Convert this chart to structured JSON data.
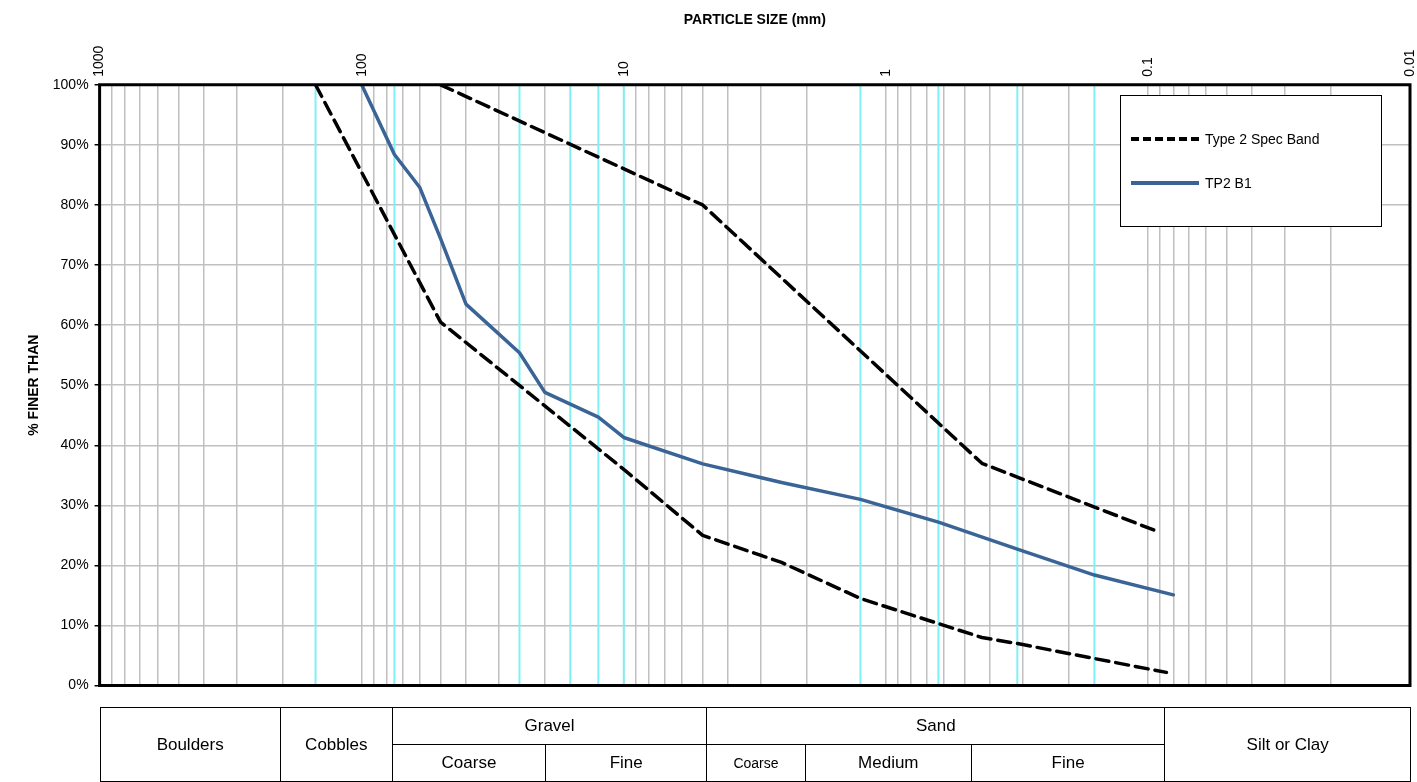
{
  "chart_data": {
    "type": "line",
    "xlabel": "PARTICLE SIZE (mm)",
    "ylabel": "% FINER THAN",
    "log": "x",
    "xlim": [
      1000,
      0.01
    ],
    "ylim": [
      0,
      100
    ],
    "xticks": [
      1000,
      {
        "value": 900,
        "label": null
      },
      {
        "value": 800,
        "label": null
      },
      {
        "value": 700,
        "label": null
      },
      {
        "value": 600,
        "label": null
      },
      {
        "value": 500,
        "label": null
      },
      {
        "value": 400,
        "label": null
      },
      {
        "value": 300,
        "label": null
      },
      {
        "value": 200,
        "label": null
      },
      100,
      {
        "value": 90,
        "label": null
      },
      {
        "value": 80,
        "label": null
      },
      {
        "value": 70,
        "label": null
      },
      {
        "value": 60,
        "label": null
      },
      {
        "value": 50,
        "label": null
      },
      {
        "value": 40,
        "label": null
      },
      {
        "value": 30,
        "label": null
      },
      {
        "value": 20,
        "label": null
      },
      10,
      {
        "value": 9,
        "label": null
      },
      {
        "value": 8,
        "label": null
      },
      {
        "value": 7,
        "label": null
      },
      {
        "value": 6,
        "label": null
      },
      {
        "value": 5,
        "label": null
      },
      {
        "value": 4,
        "label": null
      },
      {
        "value": 3,
        "label": null
      },
      {
        "value": 2,
        "label": null
      },
      1,
      {
        "value": 0.9,
        "label": null
      },
      {
        "value": 0.8,
        "label": null
      },
      {
        "value": 0.7,
        "label": null
      },
      {
        "value": 0.6,
        "label": null
      },
      {
        "value": 0.5,
        "label": null
      },
      {
        "value": 0.4,
        "label": null
      },
      {
        "value": 0.3,
        "label": null
      },
      {
        "value": 0.2,
        "label": null
      },
      0.1,
      {
        "value": 0.09,
        "label": null
      },
      {
        "value": 0.08,
        "label": null
      },
      {
        "value": 0.07,
        "label": null
      },
      {
        "value": 0.06,
        "label": null
      },
      {
        "value": 0.05,
        "label": null
      },
      {
        "value": 0.04,
        "label": null
      },
      {
        "value": 0.03,
        "label": null
      },
      {
        "value": 0.02,
        "label": null
      },
      0.01
    ],
    "yticks": [
      {
        "value": 0,
        "label": "0%"
      },
      {
        "value": 10,
        "label": "10%"
      },
      {
        "value": 20,
        "label": "20%"
      },
      {
        "value": 30,
        "label": "30%"
      },
      {
        "value": 40,
        "label": "40%"
      },
      {
        "value": 50,
        "label": "50%"
      },
      {
        "value": 60,
        "label": "60%"
      },
      {
        "value": 70,
        "label": "70%"
      },
      {
        "value": 80,
        "label": "80%"
      },
      {
        "value": 90,
        "label": "90%"
      },
      {
        "value": 100,
        "label": "100%"
      }
    ],
    "grid": true,
    "legend": "top right",
    "series": [
      {
        "name": "Type 2 Spec Band",
        "color": "#000000",
        "line_style": "dashed",
        "x": [
          50,
          5,
          0.43,
          0.09
        ],
        "values": [
          100,
          80,
          37,
          25.5
        ]
      },
      {
        "color": "#000000",
        "line_style": "dashed",
        "x": [
          150,
          50,
          10,
          5,
          2.5,
          1.25,
          0.43,
          0.315,
          0.16,
          0.085
        ],
        "values": [
          100,
          60.5,
          36,
          25,
          20.5,
          14.5,
          8,
          7,
          4.5,
          2.2
        ]
      },
      {
        "name": "TP2 B1",
        "color": "#3a6496",
        "line_style": "solid",
        "x": [
          100,
          75,
          60,
          50,
          40,
          25,
          20,
          12.5,
          10,
          5,
          2.5,
          1.25,
          0.63,
          0.315,
          0.16,
          0.08
        ],
        "values": [
          100,
          88.4,
          82.9,
          74.4,
          63.5,
          55.4,
          48.8,
          44.7,
          41.3,
          36.9,
          33.8,
          31,
          27.2,
          22.7,
          18.4,
          15.1
        ]
      }
    ],
    "ref_lines": [
      {
        "axis": "x",
        "value": 150,
        "color": "#80f0f4"
      },
      {
        "axis": "x",
        "value": 75,
        "color": "#80f0f4"
      },
      {
        "axis": "x",
        "value": 25,
        "color": "#80f0f4"
      },
      {
        "axis": "x",
        "value": 16,
        "color": "#80f0f4"
      },
      {
        "axis": "x",
        "value": 12.5,
        "color": "#80f0f4"
      },
      {
        "axis": "x",
        "value": 10,
        "color": "#80f0f4"
      },
      {
        "axis": "x",
        "value": 1.25,
        "color": "#80f0f4"
      },
      {
        "axis": "x",
        "value": 0.63,
        "color": "#80f0f4"
      },
      {
        "axis": "x",
        "value": 0.315,
        "color": "#80f0f4"
      },
      {
        "axis": "x",
        "value": 0.16,
        "color": "#80f0f4"
      }
    ],
    "annotations": [
      "Boulders",
      "Cobbles",
      "Gravel",
      "Coarse",
      "Fine",
      "Sand",
      "Coarse",
      "Medium",
      "Fine",
      "Silt or Clay"
    ]
  }
}
